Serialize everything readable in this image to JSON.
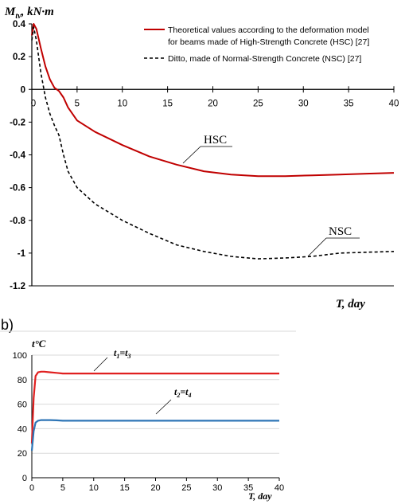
{
  "chart_data": [
    {
      "type": "line",
      "ylabel": "M",
      "ylabel_sub": "tv",
      "ylabel_unit": ", kN·m",
      "xlabel": "T, day",
      "xlim": [
        0,
        40
      ],
      "ylim": [
        -1.2,
        0.4
      ],
      "x_ticks": [
        0,
        5,
        10,
        15,
        20,
        25,
        30,
        35,
        40
      ],
      "y_ticks": [
        0.4,
        0.2,
        0,
        -0.2,
        -0.4,
        -0.6,
        -0.8,
        -1,
        -1.2
      ],
      "x_tick_labels": [
        "0",
        "5",
        "10",
        "15",
        "20",
        "25",
        "30",
        "35",
        "40"
      ],
      "y_tick_labels": [
        "0.4",
        "0.2",
        "0",
        "-0.2",
        "-0.4",
        "-0.6",
        "-0.8",
        "-1",
        "-1.2"
      ],
      "grid": false,
      "legend_position": "top-right",
      "series": [
        {
          "name": "Theoretical values according to the deformation model for beams made of High-Strength Concrete (HSC) [27]",
          "legend_lines": [
            "Theoretical values according to the deformation model",
            "for beams made of High-Strength Concrete (HSC) [27]"
          ],
          "label": "HSC",
          "color": "#c00000",
          "style": "solid",
          "x": [
            0,
            0.2,
            0.5,
            1,
            1.5,
            2,
            2.5,
            3,
            3.5,
            4,
            5,
            7,
            10,
            13,
            16,
            19,
            22,
            25,
            28,
            31,
            34,
            37,
            40
          ],
          "y": [
            0.33,
            0.4,
            0.37,
            0.25,
            0.14,
            0.06,
            0.01,
            -0.01,
            -0.05,
            -0.11,
            -0.19,
            -0.26,
            -0.34,
            -0.41,
            -0.46,
            -0.5,
            -0.52,
            -0.53,
            -0.53,
            -0.525,
            -0.52,
            -0.515,
            -0.51
          ]
        },
        {
          "name": "Ditto, made of Normal-Strength Concrete (NSC) [27]",
          "legend_lines": [
            "Ditto, made of Normal-Strength Concrete (NSC) [27]"
          ],
          "label": "NSC",
          "color": "#000000",
          "style": "dashed",
          "x": [
            0,
            0.2,
            0.5,
            1,
            1.5,
            2,
            2.5,
            3,
            3.5,
            4,
            5,
            7,
            10,
            13,
            16,
            19,
            22,
            25,
            28,
            31,
            34,
            37,
            40
          ],
          "y": [
            0.3,
            0.38,
            0.3,
            0.1,
            -0.05,
            -0.15,
            -0.22,
            -0.28,
            -0.4,
            -0.5,
            -0.6,
            -0.7,
            -0.8,
            -0.88,
            -0.95,
            -0.99,
            -1.02,
            -1.035,
            -1.03,
            -1.02,
            -1.0,
            -0.995,
            -0.99
          ]
        }
      ]
    },
    {
      "type": "line",
      "panel_label": "b)",
      "ylabel": "t°C",
      "xlabel": "T, day",
      "xlim": [
        0,
        40
      ],
      "ylim": [
        0,
        100
      ],
      "x_ticks": [
        0,
        5,
        10,
        15,
        20,
        25,
        30,
        35,
        40
      ],
      "y_ticks": [
        0,
        20,
        40,
        60,
        80,
        100
      ],
      "x_tick_labels": [
        "0",
        "5",
        "10",
        "15",
        "20",
        "25",
        "30",
        "35",
        "40"
      ],
      "y_tick_labels": [
        "0",
        "20",
        "40",
        "60",
        "80",
        "100"
      ],
      "grid": true,
      "series": [
        {
          "label_main": "t",
          "label_sub1": "1",
          "label_eq": "=t",
          "label_sub2": "3",
          "color": "#e02020",
          "style": "solid",
          "x": [
            0,
            0.3,
            0.6,
            1,
            1.5,
            2,
            3,
            4,
            5,
            10,
            20,
            30,
            40
          ],
          "y": [
            28,
            65,
            83,
            86,
            86.5,
            86.5,
            86,
            85.5,
            85,
            85,
            85,
            85,
            85
          ]
        },
        {
          "label_main": "t",
          "label_sub1": "2",
          "label_eq": "=t",
          "label_sub2": "4",
          "color": "#2e75b6",
          "style": "solid",
          "x": [
            0,
            0.3,
            0.6,
            1,
            1.5,
            2,
            3,
            4,
            5,
            10,
            20,
            30,
            40
          ],
          "y": [
            22,
            38,
            45,
            46.5,
            47,
            47,
            47,
            46.8,
            46.5,
            46.5,
            46.5,
            46.5,
            46.5
          ]
        }
      ]
    }
  ]
}
